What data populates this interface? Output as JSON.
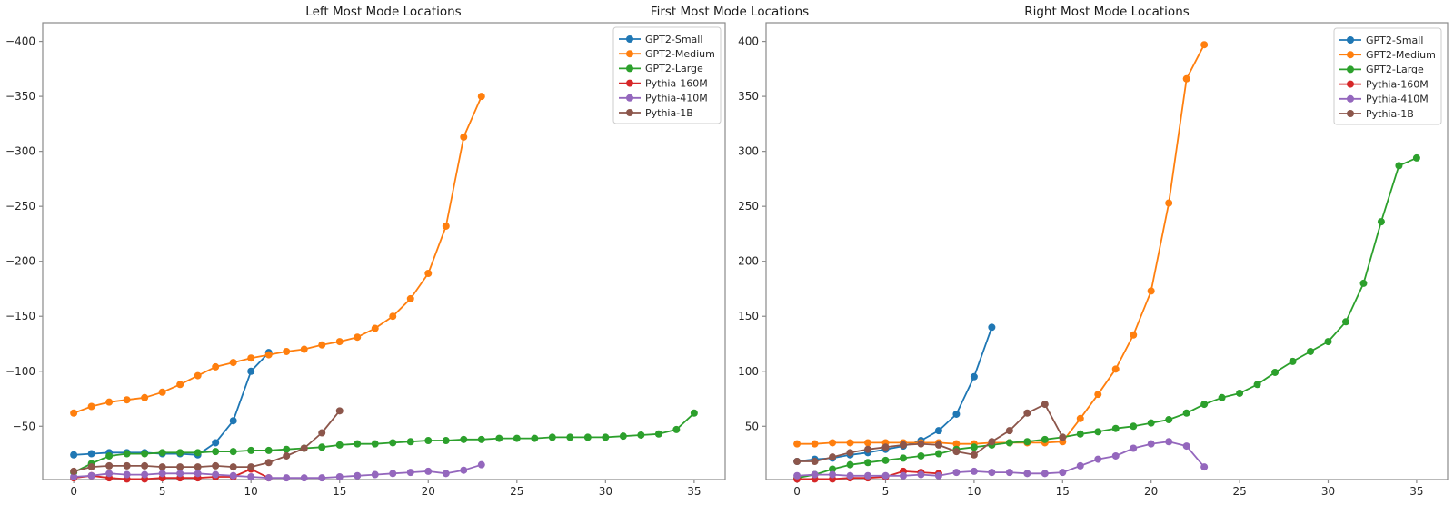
{
  "middle_title": "First Most Mode Locations",
  "colors": {
    "blue": "#1f77b4",
    "orange": "#ff7f0e",
    "green": "#2ca02c",
    "red": "#d62728",
    "purple": "#9467bd",
    "brown": "#8c564b",
    "spine": "#8a8a8a",
    "tick_label": "#262626",
    "legend_border": "#cccccc"
  },
  "chart_data": [
    {
      "type": "line",
      "title": "Left Most Mode Locations",
      "x_start": 0,
      "x_step": 1,
      "xticks": [
        0,
        5,
        10,
        15,
        20,
        25,
        30,
        35
      ],
      "yticks": [
        -400,
        -350,
        -300,
        -250,
        -200,
        -150,
        -100,
        -50
      ],
      "xlim": [
        -1.75,
        36.75
      ],
      "ylim_display": [
        -417,
        -1.5
      ],
      "y_axis_inverted": true,
      "grid": false,
      "legend_position": "upper right",
      "series": [
        {
          "name": "GPT2-Small",
          "color": "#1f77b4",
          "values": [
            -24,
            -25,
            -26,
            -26,
            -26,
            -25,
            -25,
            -24,
            -35,
            -55,
            -100,
            -117
          ]
        },
        {
          "name": "GPT2-Medium",
          "color": "#ff7f0e",
          "values": [
            -62,
            -68,
            -72,
            -74,
            -76,
            -81,
            -88,
            -96,
            -104,
            -108,
            -112,
            -115,
            -118,
            -120,
            -124,
            -127,
            -131,
            -139,
            -150,
            -166,
            -189,
            -232,
            -313,
            -350
          ]
        },
        {
          "name": "GPT2-Large",
          "color": "#2ca02c",
          "values": [
            -8,
            -16,
            -23,
            -25,
            -25,
            -26,
            -26,
            -26,
            -27,
            -27,
            -28,
            -28,
            -29,
            -30,
            -31,
            -33,
            -34,
            -34,
            -35,
            -36,
            -37,
            -37,
            -38,
            -38,
            -39,
            -39,
            -39,
            -40,
            -40,
            -40,
            -40,
            -41,
            -42,
            -43,
            -47,
            -62
          ]
        },
        {
          "name": "Pythia-160M",
          "color": "#d62728",
          "values": [
            -3,
            -5,
            -3,
            -2,
            -2,
            -3,
            -3,
            -3,
            -4,
            -4,
            -11,
            -3
          ]
        },
        {
          "name": "Pythia-410M",
          "color": "#9467bd",
          "values": [
            -4,
            -5,
            -7,
            -6,
            -6,
            -7,
            -7,
            -7,
            -6,
            -5,
            -4,
            -3,
            -3,
            -3,
            -3,
            -4,
            -5,
            -6,
            -7,
            -8,
            -9,
            -7,
            -10,
            -15
          ]
        },
        {
          "name": "Pythia-1B",
          "color": "#8c564b",
          "values": [
            -9,
            -13,
            -14,
            -14,
            -14,
            -13,
            -13,
            -13,
            -14,
            -13,
            -13,
            -17,
            -23,
            -30,
            -44,
            -64
          ]
        }
      ]
    },
    {
      "type": "line",
      "title": "Right Most Mode Locations",
      "x_start": 0,
      "x_step": 1,
      "xticks": [
        0,
        5,
        10,
        15,
        20,
        25,
        30,
        35
      ],
      "yticks": [
        400,
        350,
        300,
        250,
        200,
        150,
        100,
        50
      ],
      "xlim": [
        -1.75,
        36.75
      ],
      "ylim_display": [
        417,
        1.5
      ],
      "y_axis_inverted": false,
      "grid": false,
      "legend_position": "upper right",
      "series": [
        {
          "name": "GPT2-Small",
          "color": "#1f77b4",
          "values": [
            18,
            20,
            21,
            24,
            26,
            29,
            32,
            37,
            46,
            61,
            95,
            140
          ]
        },
        {
          "name": "GPT2-Medium",
          "color": "#ff7f0e",
          "values": [
            34,
            34,
            35,
            35,
            35,
            35,
            35,
            35,
            35,
            34,
            34,
            35,
            35,
            35,
            35,
            36,
            57,
            79,
            102,
            133,
            173,
            253,
            366,
            397
          ]
        },
        {
          "name": "GPT2-Large",
          "color": "#2ca02c",
          "values": [
            3,
            6,
            11,
            15,
            17,
            19,
            21,
            23,
            25,
            29,
            31,
            33,
            35,
            36,
            38,
            40,
            43,
            45,
            48,
            50,
            53,
            56,
            62,
            70,
            76,
            80,
            88,
            99,
            109,
            118,
            127,
            145,
            180,
            236,
            287,
            294
          ]
        },
        {
          "name": "Pythia-160M",
          "color": "#d62728",
          "values": [
            2,
            2,
            2,
            3,
            3,
            4,
            9,
            8,
            7
          ]
        },
        {
          "name": "Pythia-410M",
          "color": "#9467bd",
          "values": [
            5,
            6,
            6,
            5,
            5,
            5,
            5,
            6,
            5,
            8,
            9,
            8,
            8,
            7,
            7,
            8,
            14,
            20,
            23,
            30,
            34,
            36,
            32,
            13
          ]
        },
        {
          "name": "Pythia-1B",
          "color": "#8c564b",
          "values": [
            18,
            18,
            22,
            26,
            29,
            31,
            33,
            34,
            33,
            27,
            24,
            36,
            46,
            62,
            70,
            40
          ]
        }
      ]
    }
  ]
}
